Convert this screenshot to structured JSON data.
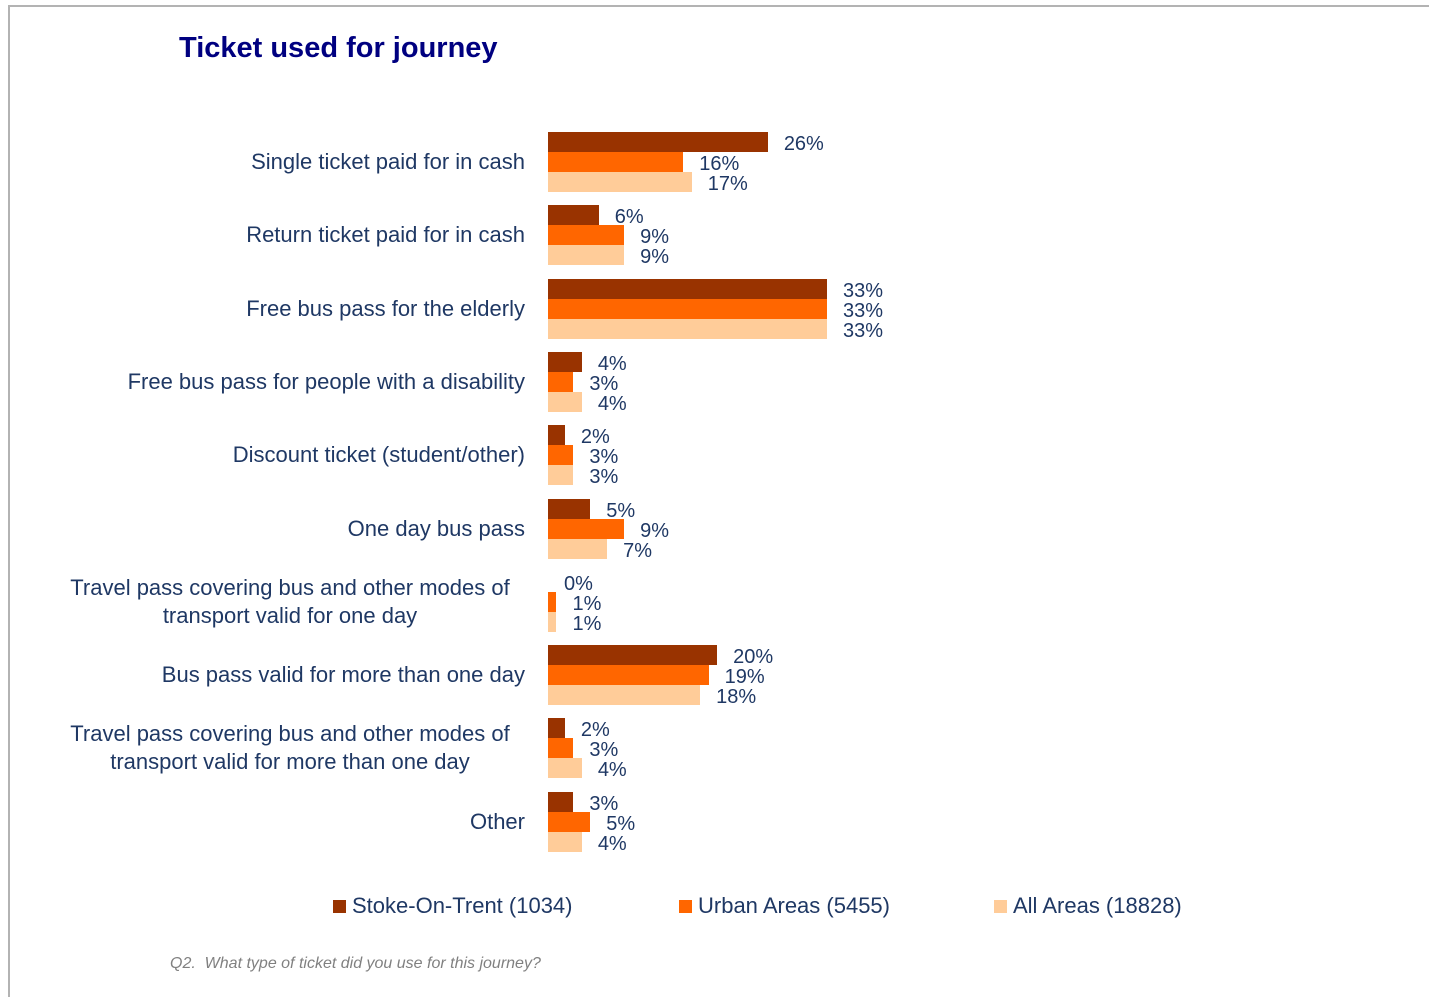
{
  "chart_data": {
    "type": "hbar",
    "title": "Ticket used for journey",
    "note": "Q2.  What type of ticket did you use for this journey?",
    "categories": [
      "Single ticket paid for in cash",
      "Return ticket paid for in cash",
      "Free bus pass for the elderly",
      "Free bus pass for people with a disability",
      "Discount ticket (student/other)",
      "One day bus pass",
      "Travel pass covering bus and other modes of transport valid for one day",
      "Bus pass valid for more than one day",
      "Travel pass covering bus and other modes of transport valid for more than one day",
      "Other"
    ],
    "series": [
      {
        "name": "Stoke-On-Trent (1034)",
        "color": "#993300",
        "values": [
          26,
          6,
          33,
          4,
          2,
          5,
          0,
          20,
          2,
          3
        ],
        "value_labels": [
          "26%",
          "6%",
          "33%",
          "4%",
          "2%",
          "5%",
          "0%",
          "20%",
          "2%",
          "3%"
        ]
      },
      {
        "name": "Urban Areas (5455)",
        "color": "#ff6600",
        "values": [
          16,
          9,
          33,
          3,
          3,
          9,
          1,
          19,
          3,
          5
        ],
        "value_labels": [
          "16%",
          "9%",
          "33%",
          "3%",
          "3%",
          "9%",
          "1%",
          "19%",
          "3%",
          "5%"
        ]
      },
      {
        "name": "All Areas (18828)",
        "color": "#ffcc99",
        "values": [
          17,
          9,
          33,
          4,
          3,
          7,
          1,
          18,
          4,
          4
        ],
        "value_labels": [
          "17%",
          "9%",
          "33%",
          "4%",
          "3%",
          "7%",
          "1%",
          "18%",
          "4%",
          "4%"
        ]
      }
    ]
  }
}
